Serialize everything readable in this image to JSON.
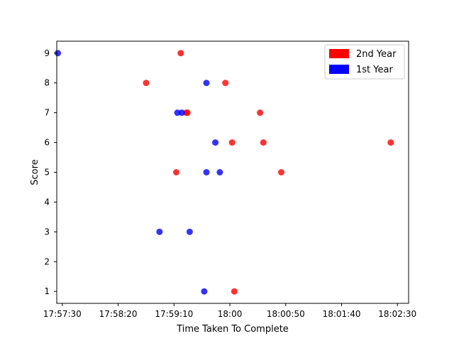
{
  "chart_data": {
    "type": "scatter",
    "title": "",
    "xlabel": "Time Taken To Complete",
    "ylabel": "Score",
    "x_unit": "time of day (HH:MM:SS)",
    "xlim": [
      "17:57:25",
      "18:02:40"
    ],
    "ylim": [
      0.6,
      9.4
    ],
    "x_ticks": [
      {
        "value": "17:57:30",
        "label": "17:57:30"
      },
      {
        "value": "17:58:20",
        "label": "17:58:20"
      },
      {
        "value": "17:59:10",
        "label": "17:59:10"
      },
      {
        "value": "18:00:00",
        "label": "18:00"
      },
      {
        "value": "18:00:50",
        "label": "18:00:50"
      },
      {
        "value": "18:01:40",
        "label": "18:01:40"
      },
      {
        "value": "18:02:30",
        "label": "18:02:30"
      }
    ],
    "y_ticks": [
      1,
      2,
      3,
      4,
      5,
      6,
      7,
      8,
      9
    ],
    "grid": false,
    "legend_position": "top-right",
    "series": [
      {
        "name": "2nd Year",
        "color": "#ff0000",
        "points": [
          {
            "x": "17:58:45",
            "y": 8
          },
          {
            "x": "17:59:16",
            "y": 9
          },
          {
            "x": "17:59:12",
            "y": 5
          },
          {
            "x": "17:59:21",
            "y": 7
          },
          {
            "x": "17:59:22",
            "y": 7
          },
          {
            "x": "17:59:56",
            "y": 8
          },
          {
            "x": "18:00:02",
            "y": 6
          },
          {
            "x": "18:00:04",
            "y": 1
          },
          {
            "x": "18:00:27",
            "y": 7
          },
          {
            "x": "18:00:30",
            "y": 6
          },
          {
            "x": "18:00:46",
            "y": 5
          },
          {
            "x": "18:02:24",
            "y": 6
          }
        ]
      },
      {
        "name": "1st Year",
        "color": "#0000ff",
        "points": [
          {
            "x": "17:57:26",
            "y": 9
          },
          {
            "x": "17:59:13",
            "y": 7
          },
          {
            "x": "17:59:17",
            "y": 7
          },
          {
            "x": "17:58:57",
            "y": 3
          },
          {
            "x": "17:59:24",
            "y": 3
          },
          {
            "x": "17:59:39",
            "y": 8
          },
          {
            "x": "17:59:39",
            "y": 5
          },
          {
            "x": "17:59:47",
            "y": 6
          },
          {
            "x": "17:59:51",
            "y": 5
          },
          {
            "x": "17:59:37",
            "y": 1
          }
        ]
      }
    ]
  }
}
